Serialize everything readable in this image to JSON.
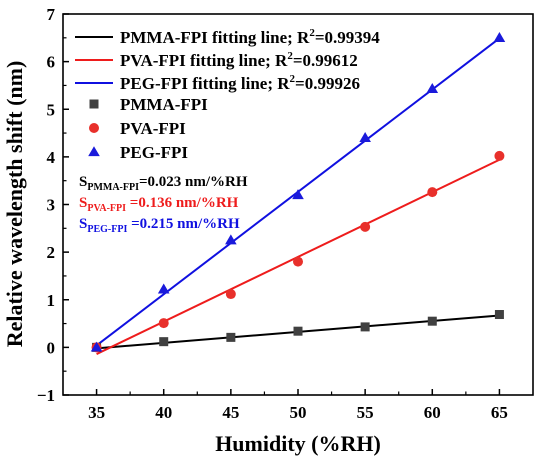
{
  "chart_data": {
    "type": "scatter",
    "xlabel": "Humidity (%RH)",
    "ylabel": "Relative wavelength shift (nm)",
    "xlim": [
      32.5,
      67.5
    ],
    "ylim": [
      -1,
      7
    ],
    "xticks": [
      "35",
      "40",
      "45",
      "50",
      "55",
      "60",
      "65"
    ],
    "yticks": [
      "−1",
      "0",
      "1",
      "2",
      "3",
      "4",
      "5",
      "6",
      "7"
    ],
    "grid": false,
    "legend_position": "top-left",
    "series": [
      {
        "name": "PMMA-FPI",
        "marker": "square",
        "color": "#404040",
        "x": [
          35,
          40,
          45,
          50,
          55,
          60,
          65
        ],
        "y": [
          0.0,
          0.12,
          0.21,
          0.34,
          0.43,
          0.55,
          0.69
        ],
        "fit": {
          "label": "PMMA-FPI fitting line; R",
          "r2": "=0.99394",
          "color": "#000000",
          "y_start": -0.02,
          "y_end": 0.67
        }
      },
      {
        "name": "PVA-FPI",
        "marker": "circle",
        "color": "#e8302b",
        "x": [
          35,
          40,
          45,
          50,
          55,
          60,
          65
        ],
        "y": [
          0.0,
          0.51,
          1.12,
          1.8,
          2.53,
          3.26,
          4.02
        ],
        "fit": {
          "label": "PVA-FPI fitting line; R",
          "r2": "=0.99612",
          "color": "#ee1c1c",
          "y_start": -0.14,
          "y_end": 3.94
        }
      },
      {
        "name": "PEG-FPI",
        "marker": "triangle",
        "color": "#1a1adb",
        "x": [
          35,
          40,
          45,
          50,
          55,
          60,
          65
        ],
        "y": [
          0.0,
          1.22,
          2.25,
          3.2,
          4.4,
          5.43,
          6.5
        ],
        "fit": {
          "label": "PEG-FPI fitting line; R",
          "r2": "=0.99926",
          "color": "#1010e0",
          "y_start": 0.04,
          "y_end": 6.49
        }
      }
    ],
    "sensitivity_annotations": [
      {
        "base": "S",
        "sub": "PMMA-FPI",
        "rest": "=0.023 nm/%RH",
        "color": "#000000"
      },
      {
        "base": "S",
        "sub": "PVA-FPI",
        "rest": " =0.136 nm/%RH",
        "color": "#ee1c1c"
      },
      {
        "base": "S",
        "sub": "PEG-FPI",
        "rest": " =0.215 nm/%RH",
        "color": "#1010e0"
      }
    ]
  }
}
